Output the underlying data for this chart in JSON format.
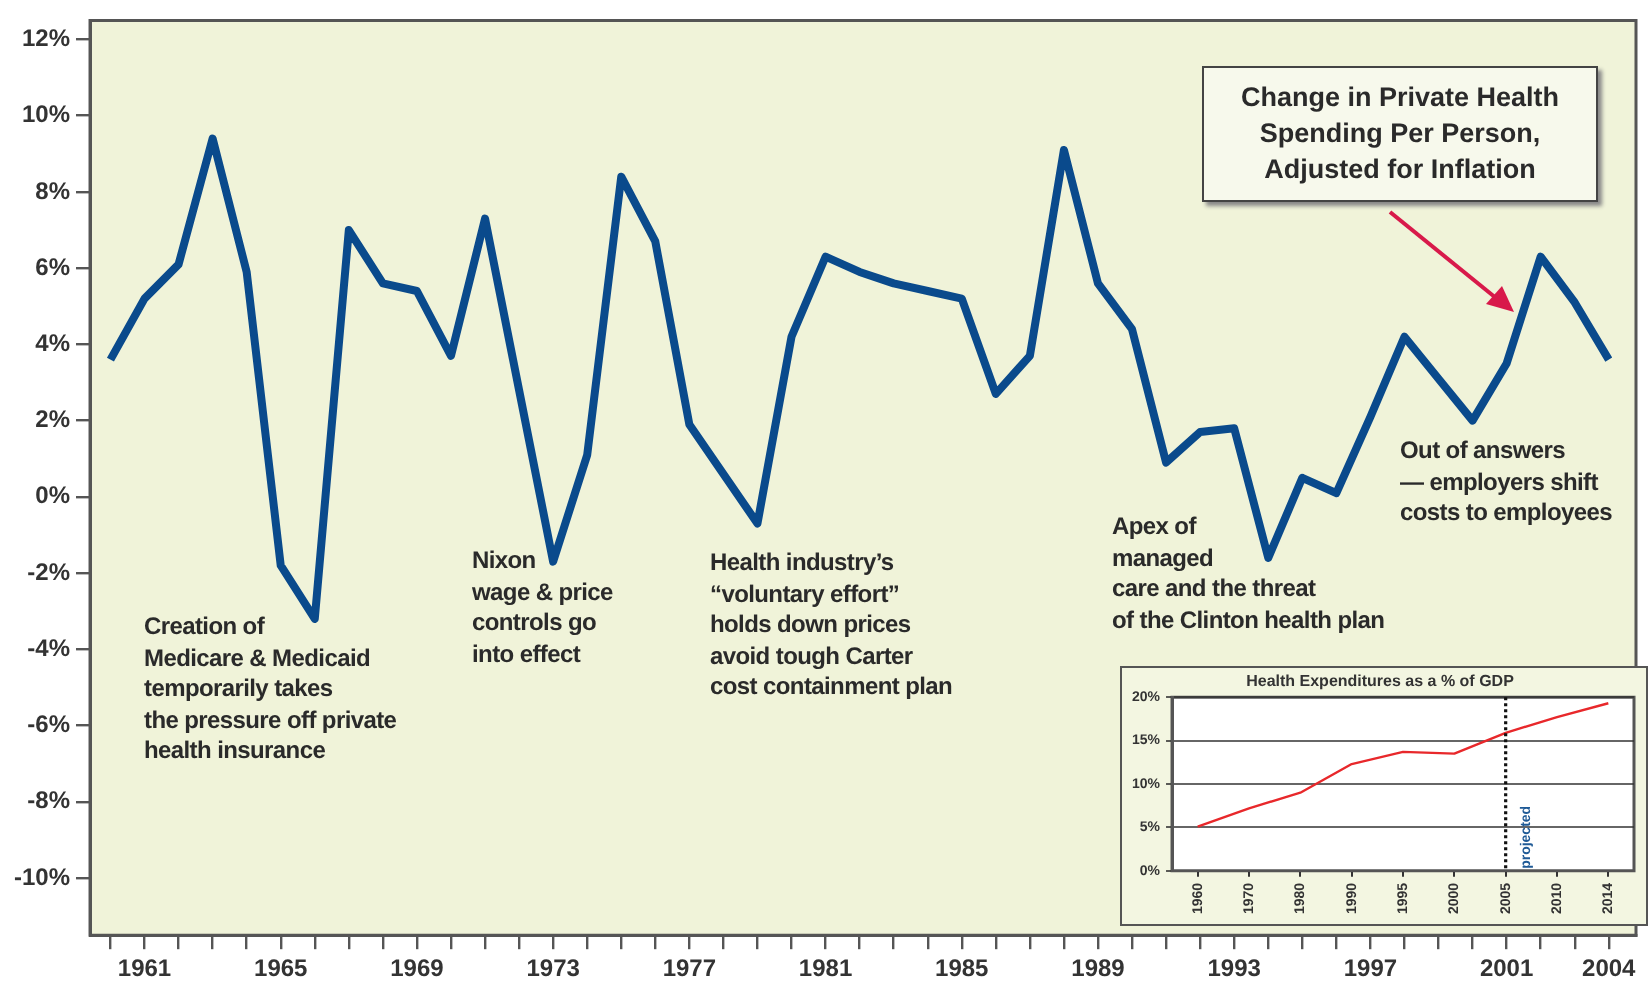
{
  "chart_data": [
    {
      "type": "line",
      "title": "Change in Private Health Spending Per Person, Adjusted for Inflation",
      "x": [
        1960,
        1961,
        1962,
        1963,
        1964,
        1965,
        1966,
        1967,
        1968,
        1969,
        1970,
        1971,
        1972,
        1973,
        1974,
        1975,
        1976,
        1977,
        1978,
        1979,
        1980,
        1981,
        1982,
        1983,
        1984,
        1985,
        1986,
        1987,
        1988,
        1989,
        1990,
        1991,
        1992,
        1993,
        1994,
        1995,
        1996,
        1997,
        1998,
        1999,
        2000,
        2001,
        2002,
        2003,
        2004
      ],
      "series": [
        {
          "color": "#0a4a8c",
          "values": [
            3.6,
            5.2,
            6.1,
            9.4,
            5.9,
            -1.8,
            -3.2,
            7.0,
            5.6,
            5.4,
            3.7,
            7.3,
            2.8,
            -1.7,
            1.1,
            8.4,
            6.7,
            1.9,
            0.6,
            -0.7,
            4.2,
            6.3,
            5.9,
            5.6,
            5.4,
            5.2,
            2.7,
            3.7,
            9.1,
            5.6,
            4.4,
            0.9,
            1.7,
            1.8,
            -1.6,
            0.5,
            0.1,
            2.1,
            4.2,
            3.1,
            2.0,
            3.5,
            6.3,
            5.1,
            3.6
          ]
        }
      ],
      "xlim": [
        1959.4,
        2004.8
      ],
      "xticks": [
        {
          "value": 1960,
          "label": null
        },
        1961,
        {
          "value": 1962,
          "label": null
        },
        {
          "value": 1963,
          "label": null
        },
        {
          "value": 1964,
          "label": null
        },
        1965,
        {
          "value": 1966,
          "label": null
        },
        {
          "value": 1967,
          "label": null
        },
        {
          "value": 1968,
          "label": null
        },
        1969,
        {
          "value": 1970,
          "label": null
        },
        {
          "value": 1971,
          "label": null
        },
        {
          "value": 1972,
          "label": null
        },
        1973,
        {
          "value": 1974,
          "label": null
        },
        {
          "value": 1975,
          "label": null
        },
        {
          "value": 1976,
          "label": null
        },
        1977,
        {
          "value": 1978,
          "label": null
        },
        {
          "value": 1979,
          "label": null
        },
        {
          "value": 1980,
          "label": null
        },
        1981,
        {
          "value": 1982,
          "label": null
        },
        {
          "value": 1983,
          "label": null
        },
        {
          "value": 1984,
          "label": null
        },
        1985,
        {
          "value": 1986,
          "label": null
        },
        {
          "value": 1987,
          "label": null
        },
        {
          "value": 1988,
          "label": null
        },
        1989,
        {
          "value": 1990,
          "label": null
        },
        {
          "value": 1991,
          "label": null
        },
        {
          "value": 1992,
          "label": null
        },
        1993,
        {
          "value": 1994,
          "label": null
        },
        {
          "value": 1995,
          "label": null
        },
        {
          "value": 1996,
          "label": null
        },
        1997,
        {
          "value": 1998,
          "label": null
        },
        {
          "value": 1999,
          "label": null
        },
        {
          "value": 2000,
          "label": null
        },
        2001,
        {
          "value": 2002,
          "label": null
        },
        {
          "value": 2003,
          "label": null
        },
        2004
      ],
      "ylim": [
        -11.5,
        12.5
      ],
      "yticks": [
        {
          "value": -10,
          "label": "-10%"
        },
        {
          "value": -8,
          "label": "-8%"
        },
        {
          "value": -6,
          "label": "-6%"
        },
        {
          "value": -4,
          "label": "-4%"
        },
        {
          "value": -2,
          "label": "-2%"
        },
        {
          "value": 0,
          "label": "0%"
        },
        {
          "value": 2,
          "label": "2%"
        },
        {
          "value": 4,
          "label": "4%"
        },
        {
          "value": 6,
          "label": "6%"
        },
        {
          "value": 8,
          "label": "8%"
        },
        {
          "value": 10,
          "label": "10%"
        },
        {
          "value": 12,
          "label": "12%"
        }
      ],
      "annotations": [
        "Creation of\nMedicare & Medicaid\ntemporarily takes\nthe pressure off private\nhealth insurance",
        "Nixon\nwage & price\ncontrols go\ninto effect",
        "Health industry’s\n“voluntary effort”\nholds down prices\navoid tough Carter\ncost containment plan",
        "Apex of\nmanaged\ncare and the threat\nof the Clinton health plan",
        "Out of answers\n— employers shift\ncosts to employees"
      ]
    },
    {
      "type": "line",
      "title": "Health Expenditures as a % of GDP",
      "categories": [
        "1960",
        "1970",
        "1980",
        "1990",
        "1995",
        "2000",
        "2005",
        "2010",
        "2014"
      ],
      "series": [
        {
          "color": "#e8282b",
          "values": [
            5.1,
            7.2,
            9.0,
            12.3,
            13.7,
            13.5,
            15.9,
            17.7,
            19.3
          ]
        }
      ],
      "ylim": [
        0,
        20
      ],
      "yticks": [
        {
          "value": 0,
          "label": "0%"
        },
        {
          "value": 5,
          "label": "5%"
        },
        {
          "value": 10,
          "label": "10%"
        },
        {
          "value": 15,
          "label": "15%"
        },
        {
          "value": 20,
          "label": "20%"
        }
      ],
      "grid": "y",
      "ref_lines": [
        {
          "axis": "x",
          "value": "2005",
          "line_style": "dotted",
          "color": "#111111"
        }
      ],
      "annotations": [
        "projected"
      ]
    }
  ]
}
